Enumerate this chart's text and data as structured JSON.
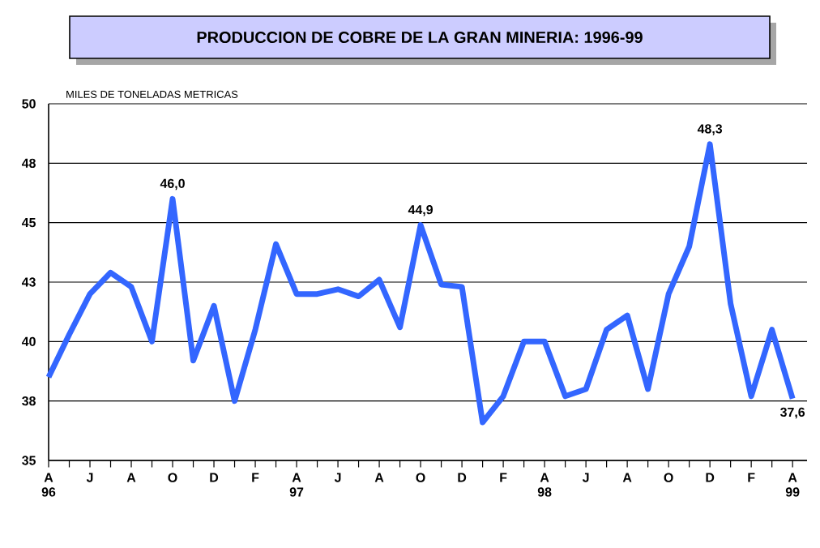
{
  "chart_data": {
    "type": "line",
    "title": "PRODUCCION DE COBRE DE LA GRAN MINERIA: 1996-99",
    "ylabel": "MILES DE TONELADAS METRICAS",
    "categories": [
      "A 96",
      null,
      "J",
      null,
      "A",
      null,
      "O",
      null,
      "D",
      null,
      "F",
      null,
      "A 97",
      null,
      "J",
      null,
      "A",
      null,
      "O",
      null,
      "D",
      null,
      "F",
      null,
      "A 98",
      null,
      "J",
      null,
      "A",
      null,
      "O",
      null,
      "D",
      null,
      "F",
      null,
      "A 99"
    ],
    "series": [
      {
        "color": "#3366ff",
        "values": [
          38.5,
          40.3,
          42.0,
          42.9,
          42.3,
          40.0,
          46.0,
          39.2,
          41.5,
          37.5,
          40.5,
          44.1,
          42.0,
          42.0,
          42.2,
          41.9,
          42.6,
          40.6,
          44.9,
          42.4,
          42.3,
          36.6,
          37.7,
          40.0,
          40.0,
          37.7,
          38.0,
          40.5,
          41.1,
          38.0,
          42.0,
          44.0,
          48.3,
          41.6,
          37.7,
          40.5,
          37.6
        ],
        "value_labels": [
          null,
          null,
          null,
          null,
          null,
          null,
          "46,0",
          null,
          null,
          null,
          null,
          null,
          null,
          null,
          null,
          null,
          null,
          null,
          "44,9",
          null,
          null,
          null,
          null,
          null,
          null,
          null,
          null,
          null,
          null,
          null,
          null,
          null,
          "48,3",
          null,
          null,
          null,
          "37,6"
        ]
      }
    ],
    "ylim": [
      35,
      50
    ],
    "yticks": [
      35,
      {
        "value": 37.5,
        "label": "38"
      },
      40,
      {
        "value": 42.5,
        "label": "43"
      },
      45,
      {
        "value": 47.5,
        "label": "48"
      },
      50
    ],
    "grid": "y"
  }
}
